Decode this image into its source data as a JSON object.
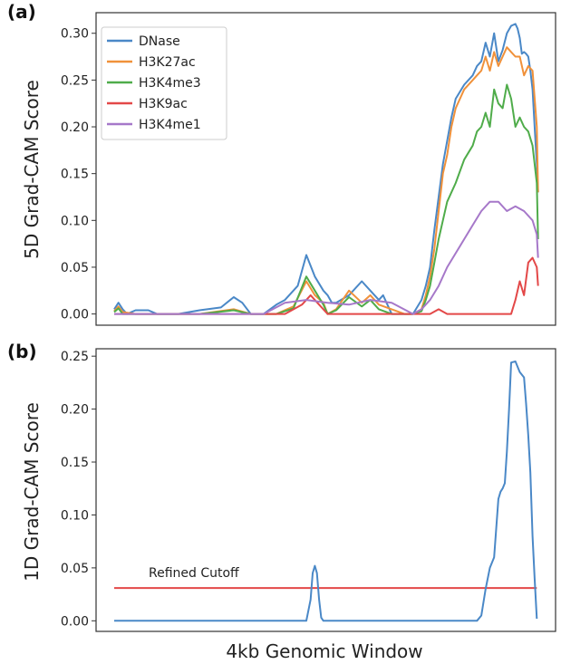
{
  "chart_data": [
    {
      "panel": "(a)",
      "type": "line",
      "title": "",
      "xlabel": "",
      "ylabel": "5D Grad-CAM Score",
      "ylim": [
        -0.012,
        0.322
      ],
      "xlim": [
        0,
        1
      ],
      "yticks": [
        0.0,
        0.05,
        0.1,
        0.15,
        0.2,
        0.25,
        0.3
      ],
      "ytick_labels": [
        "0.00",
        "0.05",
        "0.10",
        "0.15",
        "0.20",
        "0.25",
        "0.30"
      ],
      "legend_position": "top-left",
      "series": [
        {
          "name": "DNase",
          "color": "#4a88c7",
          "x": [
            0,
            0.01,
            0.02,
            0.03,
            0.05,
            0.08,
            0.1,
            0.15,
            0.2,
            0.25,
            0.28,
            0.3,
            0.32,
            0.35,
            0.38,
            0.4,
            0.43,
            0.45,
            0.47,
            0.49,
            0.5,
            0.51,
            0.52,
            0.55,
            0.58,
            0.6,
            0.62,
            0.63,
            0.65,
            0.67,
            0.68,
            0.7,
            0.72,
            0.73,
            0.74,
            0.75,
            0.76,
            0.77,
            0.78,
            0.79,
            0.8,
            0.82,
            0.84,
            0.85,
            0.86,
            0.87,
            0.88,
            0.89,
            0.9,
            0.91,
            0.92,
            0.93,
            0.94,
            0.945,
            0.95,
            0.955,
            0.96,
            0.965,
            0.97,
            0.975,
            0.98,
            0.985,
            0.99,
            0.993
          ],
          "y": [
            0.005,
            0.012,
            0.005,
            0.0,
            0.004,
            0.004,
            0.0,
            0.0,
            0.004,
            0.007,
            0.018,
            0.012,
            0.0,
            0.0,
            0.01,
            0.015,
            0.03,
            0.063,
            0.04,
            0.025,
            0.02,
            0.012,
            0.012,
            0.02,
            0.035,
            0.025,
            0.015,
            0.02,
            0.0,
            0.0,
            0.0,
            0.0,
            0.015,
            0.03,
            0.05,
            0.09,
            0.125,
            0.16,
            0.185,
            0.21,
            0.23,
            0.245,
            0.255,
            0.265,
            0.27,
            0.29,
            0.275,
            0.3,
            0.27,
            0.282,
            0.3,
            0.308,
            0.31,
            0.305,
            0.295,
            0.278,
            0.28,
            0.278,
            0.275,
            0.26,
            0.24,
            0.2,
            0.16,
            0.13
          ]
        },
        {
          "name": "H3K27ac",
          "color": "#f0913a",
          "x": [
            0,
            0.01,
            0.02,
            0.05,
            0.1,
            0.2,
            0.28,
            0.32,
            0.38,
            0.42,
            0.45,
            0.47,
            0.49,
            0.5,
            0.52,
            0.55,
            0.58,
            0.6,
            0.62,
            0.65,
            0.68,
            0.7,
            0.72,
            0.73,
            0.74,
            0.75,
            0.76,
            0.77,
            0.78,
            0.79,
            0.8,
            0.82,
            0.84,
            0.85,
            0.86,
            0.87,
            0.88,
            0.89,
            0.9,
            0.91,
            0.92,
            0.93,
            0.94,
            0.95,
            0.96,
            0.97,
            0.98,
            0.99,
            0.993
          ],
          "y": [
            0.003,
            0.008,
            0.002,
            0.0,
            0.0,
            0.0,
            0.005,
            0.0,
            0.0,
            0.008,
            0.035,
            0.02,
            0.012,
            0.0,
            0.005,
            0.025,
            0.012,
            0.02,
            0.01,
            0.005,
            0.0,
            0.0,
            0.005,
            0.02,
            0.04,
            0.07,
            0.11,
            0.15,
            0.17,
            0.2,
            0.22,
            0.24,
            0.25,
            0.255,
            0.26,
            0.275,
            0.26,
            0.28,
            0.265,
            0.275,
            0.285,
            0.28,
            0.275,
            0.275,
            0.255,
            0.265,
            0.26,
            0.2,
            0.13
          ]
        },
        {
          "name": "H3K4me3",
          "color": "#4fac4a",
          "x": [
            0,
            0.01,
            0.02,
            0.05,
            0.1,
            0.2,
            0.28,
            0.32,
            0.38,
            0.42,
            0.45,
            0.47,
            0.49,
            0.5,
            0.52,
            0.55,
            0.58,
            0.6,
            0.62,
            0.65,
            0.68,
            0.7,
            0.72,
            0.73,
            0.74,
            0.75,
            0.76,
            0.77,
            0.78,
            0.79,
            0.8,
            0.82,
            0.84,
            0.85,
            0.86,
            0.87,
            0.88,
            0.89,
            0.9,
            0.91,
            0.92,
            0.93,
            0.94,
            0.95,
            0.96,
            0.97,
            0.98,
            0.99,
            0.993
          ],
          "y": [
            0.002,
            0.006,
            0.0,
            0.0,
            0.0,
            0.0,
            0.004,
            0.0,
            0.0,
            0.006,
            0.04,
            0.025,
            0.01,
            0.0,
            0.004,
            0.018,
            0.008,
            0.015,
            0.005,
            0.0,
            0.0,
            0.0,
            0.003,
            0.015,
            0.03,
            0.055,
            0.08,
            0.1,
            0.12,
            0.13,
            0.14,
            0.165,
            0.18,
            0.195,
            0.2,
            0.215,
            0.2,
            0.24,
            0.225,
            0.22,
            0.245,
            0.23,
            0.2,
            0.21,
            0.2,
            0.195,
            0.18,
            0.14,
            0.08
          ]
        },
        {
          "name": "H3K9ac",
          "color": "#e34848",
          "x": [
            0,
            0.1,
            0.2,
            0.3,
            0.4,
            0.44,
            0.46,
            0.48,
            0.5,
            0.55,
            0.6,
            0.65,
            0.7,
            0.74,
            0.76,
            0.78,
            0.8,
            0.9,
            0.93,
            0.94,
            0.95,
            0.96,
            0.97,
            0.98,
            0.99,
            0.993
          ],
          "y": [
            0.0,
            0.0,
            0.0,
            0.0,
            0.0,
            0.01,
            0.02,
            0.01,
            0.0,
            0.0,
            0.0,
            0.0,
            0.0,
            0.0,
            0.005,
            0.0,
            0.0,
            0.0,
            0.0,
            0.015,
            0.035,
            0.02,
            0.055,
            0.06,
            0.05,
            0.03
          ]
        },
        {
          "name": "H3K4me1",
          "color": "#a678c9",
          "x": [
            0,
            0.05,
            0.1,
            0.2,
            0.3,
            0.35,
            0.4,
            0.45,
            0.5,
            0.55,
            0.6,
            0.65,
            0.7,
            0.72,
            0.74,
            0.76,
            0.78,
            0.8,
            0.82,
            0.84,
            0.86,
            0.88,
            0.9,
            0.92,
            0.94,
            0.96,
            0.98,
            0.99,
            0.993
          ],
          "y": [
            0.0,
            0.0,
            0.0,
            0.0,
            0.0,
            0.0,
            0.012,
            0.015,
            0.012,
            0.01,
            0.015,
            0.012,
            0.0,
            0.005,
            0.015,
            0.03,
            0.05,
            0.065,
            0.08,
            0.095,
            0.11,
            0.12,
            0.12,
            0.11,
            0.115,
            0.11,
            0.1,
            0.085,
            0.06
          ]
        }
      ]
    },
    {
      "panel": "(b)",
      "type": "line",
      "title": "",
      "xlabel": "4kb Genomic Window",
      "ylabel": "1D Grad-CAM Score",
      "ylim": [
        -0.01,
        0.257
      ],
      "xlim": [
        0,
        1
      ],
      "yticks": [
        0.0,
        0.05,
        0.1,
        0.15,
        0.2,
        0.25
      ],
      "ytick_labels": [
        "0.00",
        "0.05",
        "0.10",
        "0.15",
        "0.20",
        "0.25"
      ],
      "series": [
        {
          "name": "",
          "color": "#4a88c7",
          "x": [
            0.0,
            0.45,
            0.46,
            0.465,
            0.47,
            0.475,
            0.48,
            0.485,
            0.49,
            0.85,
            0.86,
            0.87,
            0.88,
            0.89,
            0.9,
            0.905,
            0.91,
            0.915,
            0.92,
            0.925,
            0.93,
            0.94,
            0.95,
            0.96,
            0.965,
            0.97,
            0.975,
            0.98,
            0.985,
            0.99
          ],
          "y": [
            0.0,
            0.0,
            0.02,
            0.045,
            0.052,
            0.045,
            0.02,
            0.003,
            0.0,
            0.0,
            0.005,
            0.03,
            0.05,
            0.06,
            0.115,
            0.122,
            0.125,
            0.13,
            0.16,
            0.2,
            0.244,
            0.245,
            0.235,
            0.23,
            0.205,
            0.175,
            0.14,
            0.08,
            0.04,
            0.002
          ]
        }
      ],
      "reference_lines": [
        {
          "label": "Refined Cutoff",
          "y": 0.031,
          "x": [
            0.0,
            0.99
          ],
          "color": "#e34848"
        }
      ]
    }
  ]
}
